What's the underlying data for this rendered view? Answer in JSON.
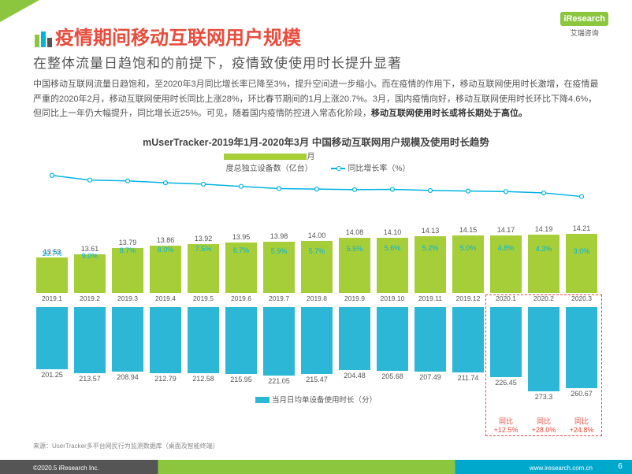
{
  "logo": {
    "brand": "iResearch",
    "sub": "艾瑞咨询"
  },
  "title_color": "#e74c3c",
  "title": "疫情期间移动互联网用户规模",
  "subtitle": "在整体流量日趋饱和的前提下，疫情致使使用时长提升显著",
  "body": "中国移动互联网流量日趋饱和，至2020年3月同比增长率已降至3%，提升空间进一步缩小。而在疫情的作用下，移动互联网使用时长激增，在疫情最严重的2020年2月，移动互联网使用时长同比上涨28%，环比春节期间的1月上涨20.7%。3月，国内疫情向好，移动互联网使用时长环比下降4.6%，但同比上一年仍大幅提升，同比增长近25%。可见，随着国内疫情防控进入常态化阶段，",
  "body_bold": "移动互联网使用时长或将长期处于高位。",
  "chart": {
    "title": "mUserTracker-2019年1月-2020年3月 中国移动互联网用户规模及使用时长趋势",
    "legend1": "月度总独立设备数（亿台）",
    "legend2": "同比增长率（%）",
    "legend3": "当月日均单设备使用时长（分）",
    "bar_color": "#a6ce39",
    "bar2_color": "#2db7d6",
    "line_color": "#00b3e3",
    "highlight_color": "#e74c3c",
    "categories": [
      "2019.1",
      "2019.2",
      "2019.3",
      "2019.4",
      "2019.5",
      "2019.6",
      "2019.7",
      "2019.8",
      "2019.9",
      "2019.10",
      "2019.11",
      "2019.12",
      "2020.1",
      "2020.2",
      "2020.3"
    ],
    "devices": [
      13.53,
      13.61,
      13.79,
      13.86,
      13.92,
      13.95,
      13.98,
      14.0,
      14.08,
      14.1,
      14.13,
      14.15,
      14.17,
      14.19,
      14.21
    ],
    "growth": [
      10.7,
      9.0,
      8.7,
      8.0,
      7.5,
      6.7,
      5.9,
      5.7,
      5.5,
      5.6,
      5.2,
      5.0,
      4.8,
      4.3,
      3.0
    ],
    "duration": [
      201.25,
      213.57,
      208.94,
      212.79,
      212.58,
      215.95,
      221.05,
      215.47,
      204.48,
      205.68,
      207.49,
      211.74,
      226.45,
      273.3,
      260.67
    ],
    "device_ymax": 15.0,
    "device_ymin": 12.5,
    "growth_ymax": 11.5,
    "duration_ymax": 300,
    "yoy": [
      {
        "label": "同比",
        "val": "+12.5%"
      },
      {
        "label": "同比",
        "val": "+28.0%"
      },
      {
        "label": "同比",
        "val": "+24.8%"
      }
    ]
  },
  "source": "来源：UserTracker多平台网民行为监测数据库（桌面及智能终端）",
  "footer": {
    "copy": "©2020.5 iResearch Inc.",
    "url": "www.iresearch.com.cn",
    "page": "6"
  }
}
